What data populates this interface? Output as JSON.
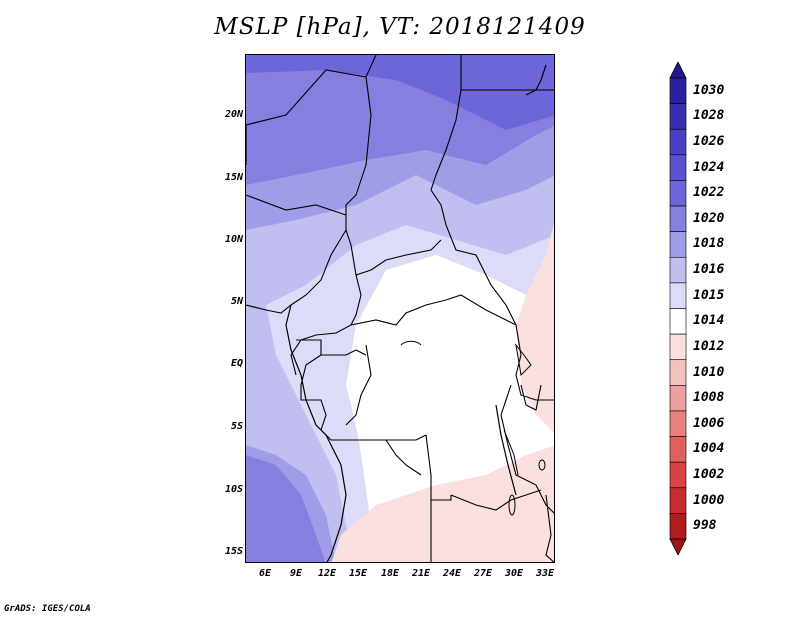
{
  "title": "MSLP [hPa], VT: 2018121409",
  "credit": "GrADS: IGES/COLA",
  "map": {
    "lat_labels": [
      "20N",
      "15N",
      "10N",
      "5N",
      "EQ",
      "5S",
      "10S",
      "15S"
    ],
    "lon_labels": [
      "6E",
      "9E",
      "12E",
      "15E",
      "18E",
      "21E",
      "24E",
      "27E",
      "30E",
      "33E"
    ]
  },
  "colorbar": {
    "labels": [
      "1030",
      "1028",
      "1026",
      "1024",
      "1022",
      "1020",
      "1018",
      "1016",
      "1015",
      "1014",
      "1012",
      "1010",
      "1008",
      "1006",
      "1004",
      "1002",
      "1000",
      "998"
    ],
    "colors": [
      "#2a1f9c",
      "#3a2fb0",
      "#4a40c2",
      "#5a52cf",
      "#6d66d8",
      "#8580e0",
      "#a09de8",
      "#c0bff0",
      "#dcdcf8",
      "#ffffff",
      "#fbe0e0",
      "#f5c0c0",
      "#ee9f9f",
      "#e88080",
      "#e06060",
      "#d84444",
      "#c82c2c",
      "#b01c1c"
    ],
    "top_arrow_color": "#231890",
    "bottom_arrow_color": "#a01414"
  }
}
